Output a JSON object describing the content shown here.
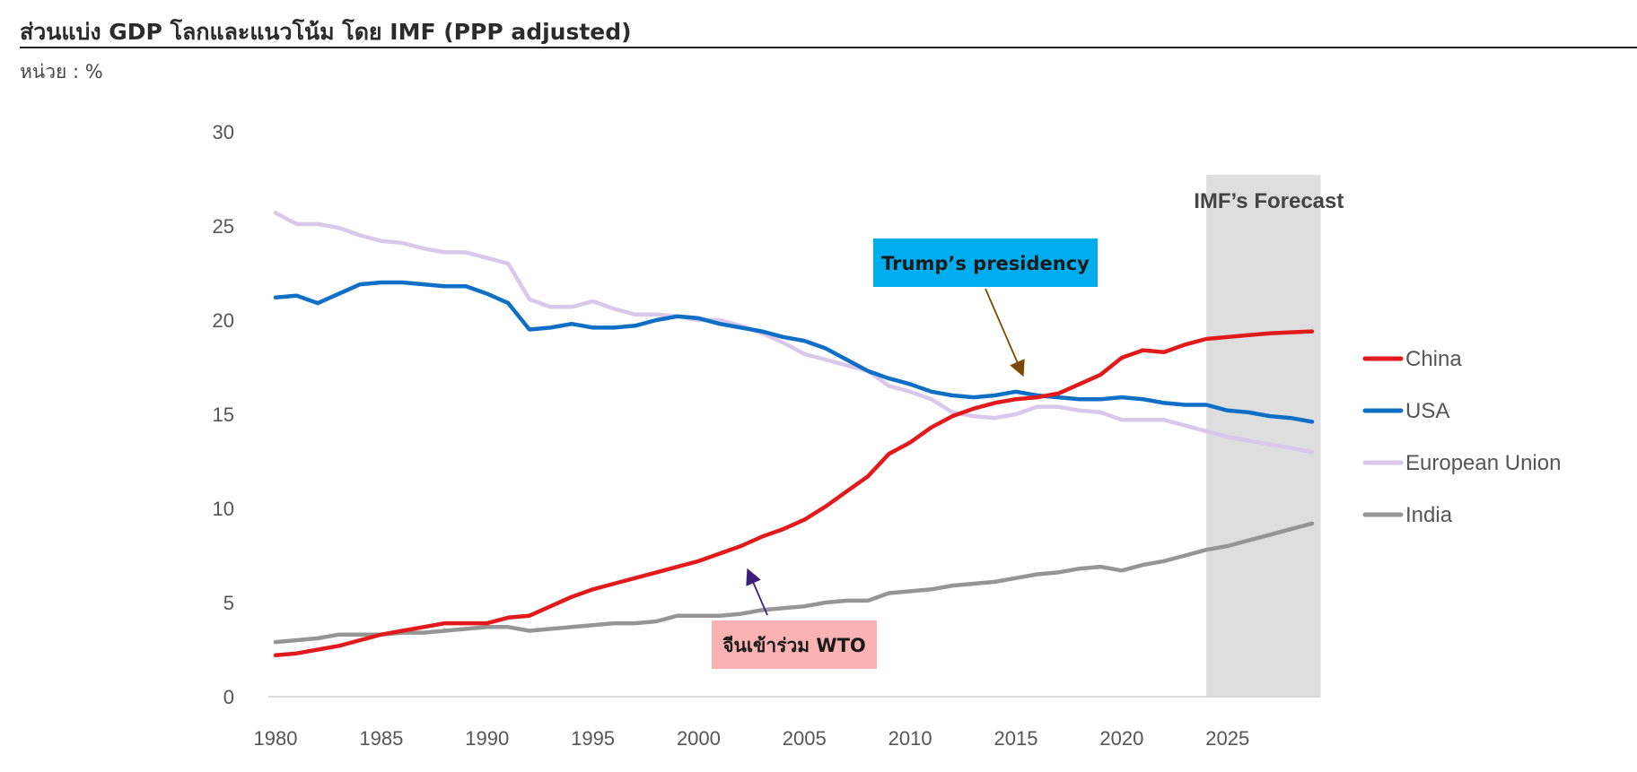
{
  "header": {
    "title": "ส่วนแบ่ง GDP โลกและแนวโน้ม โดย IMF (PPP adjusted)",
    "unit": "หน่วย : %"
  },
  "chart_data": {
    "type": "line",
    "title": "ส่วนแบ่ง GDP โลกและแนวโน้ม โดย IMF (PPP adjusted)",
    "xlabel": "",
    "ylabel": "",
    "xlim": [
      1980,
      2029
    ],
    "ylim": [
      0,
      30
    ],
    "x_ticks": [
      1980,
      1985,
      1990,
      1995,
      2000,
      2005,
      2010,
      2015,
      2020,
      2025
    ],
    "y_ticks": [
      0,
      5,
      10,
      15,
      20,
      25,
      30
    ],
    "grid": false,
    "legend_position": "right",
    "x": [
      1980,
      1981,
      1982,
      1983,
      1984,
      1985,
      1986,
      1987,
      1988,
      1989,
      1990,
      1991,
      1992,
      1993,
      1994,
      1995,
      1996,
      1997,
      1998,
      1999,
      2000,
      2001,
      2002,
      2003,
      2004,
      2005,
      2006,
      2007,
      2008,
      2009,
      2010,
      2011,
      2012,
      2013,
      2014,
      2015,
      2016,
      2017,
      2018,
      2019,
      2020,
      2021,
      2022,
      2023,
      2024,
      2025,
      2026,
      2027,
      2028,
      2029
    ],
    "series": [
      {
        "name": "China",
        "color": "#e31a1c",
        "values": [
          2.2,
          2.3,
          2.5,
          2.7,
          3.0,
          3.3,
          3.5,
          3.7,
          3.9,
          3.9,
          3.9,
          4.2,
          4.3,
          4.8,
          5.3,
          5.7,
          6.0,
          6.3,
          6.6,
          6.9,
          7.2,
          7.6,
          8.0,
          8.5,
          8.9,
          9.4,
          10.1,
          10.9,
          11.7,
          12.9,
          13.5,
          14.3,
          14.9,
          15.3,
          15.6,
          15.8,
          15.9,
          16.1,
          16.6,
          17.1,
          18.0,
          18.4,
          18.3,
          18.7,
          19.0,
          19.1,
          19.2,
          19.3,
          19.35,
          19.4
        ]
      },
      {
        "name": "USA",
        "color": "#0f6fc6",
        "values": [
          21.2,
          21.3,
          20.9,
          21.4,
          21.9,
          22.0,
          22.0,
          21.9,
          21.8,
          21.8,
          21.4,
          20.9,
          19.5,
          19.6,
          19.8,
          19.6,
          19.6,
          19.7,
          20.0,
          20.2,
          20.1,
          19.8,
          19.6,
          19.4,
          19.1,
          18.9,
          18.5,
          17.9,
          17.3,
          16.9,
          16.6,
          16.2,
          16.0,
          15.9,
          16.0,
          16.2,
          16.0,
          15.9,
          15.8,
          15.8,
          15.9,
          15.8,
          15.6,
          15.5,
          15.5,
          15.2,
          15.1,
          14.9,
          14.8,
          14.6
        ]
      },
      {
        "name": "European Union",
        "color": "#d9c8ec",
        "values": [
          25.7,
          25.1,
          25.1,
          24.9,
          24.5,
          24.2,
          24.1,
          23.8,
          23.6,
          23.6,
          23.3,
          23.0,
          21.1,
          20.7,
          20.7,
          21.0,
          20.6,
          20.3,
          20.3,
          20.2,
          20.0,
          20.0,
          19.7,
          19.3,
          18.8,
          18.2,
          17.9,
          17.6,
          17.3,
          16.5,
          16.2,
          15.8,
          15.1,
          14.9,
          14.8,
          15.0,
          15.4,
          15.4,
          15.2,
          15.1,
          14.7,
          14.7,
          14.7,
          14.4,
          14.1,
          13.8,
          13.6,
          13.4,
          13.2,
          13.0
        ]
      },
      {
        "name": "India",
        "color": "#959595",
        "values": [
          2.9,
          3.0,
          3.1,
          3.3,
          3.3,
          3.3,
          3.4,
          3.4,
          3.5,
          3.6,
          3.7,
          3.7,
          3.5,
          3.6,
          3.7,
          3.8,
          3.9,
          3.9,
          4.0,
          4.3,
          4.3,
          4.3,
          4.4,
          4.6,
          4.7,
          4.8,
          5.0,
          5.1,
          5.1,
          5.5,
          5.6,
          5.7,
          5.9,
          6.0,
          6.1,
          6.3,
          6.5,
          6.6,
          6.8,
          6.9,
          6.7,
          7.0,
          7.2,
          7.5,
          7.8,
          8.0,
          8.3,
          8.6,
          8.9,
          9.2
        ]
      }
    ],
    "forecast_region": {
      "label": "IMF’s Forecast",
      "from": 2024,
      "to": 2029.4
    },
    "annotations": [
      {
        "label": "Trump’s presidency",
        "year": 2015.2,
        "value": 17.0,
        "bg": "#00adef",
        "arrow": "#7b4a00"
      },
      {
        "label": "จีนเข้าร่วม WTO",
        "year": 2002.4,
        "value": 6.8,
        "bg": "#fbb2b2",
        "arrow": "#3b1f7a"
      }
    ]
  }
}
